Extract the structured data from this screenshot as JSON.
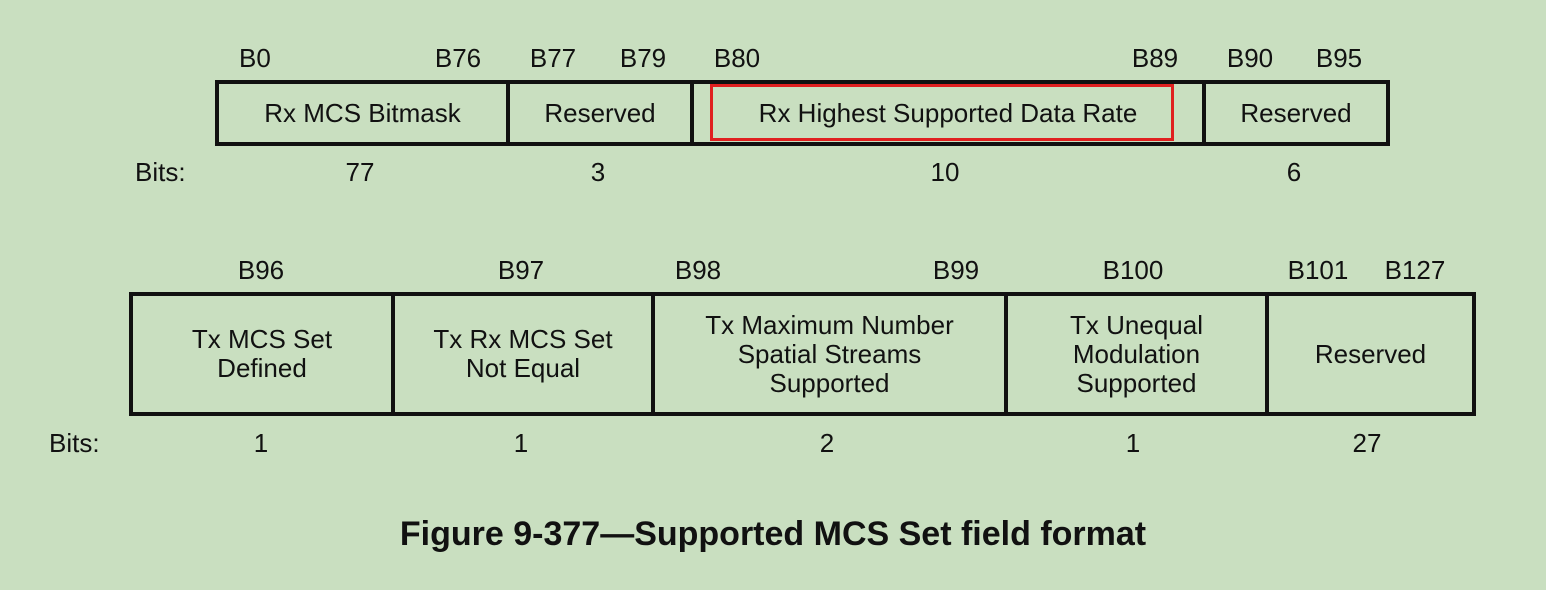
{
  "row1": {
    "bit_markers": [
      "B0",
      "B76",
      "B77",
      "B79",
      "B80",
      "B89",
      "B90",
      "B95"
    ],
    "fields": [
      {
        "name": "Rx MCS Bitmask",
        "bits": "77"
      },
      {
        "name": "Reserved",
        "bits": "3"
      },
      {
        "name": "Rx Highest Supported Data Rate",
        "bits": "10",
        "highlighted": true
      },
      {
        "name": "Reserved",
        "bits": "6"
      }
    ],
    "bits_label": "Bits:"
  },
  "row2": {
    "bit_markers": [
      "B96",
      "B97",
      "B98",
      "B99",
      "B100",
      "B101",
      "B127"
    ],
    "fields": [
      {
        "name": "Tx MCS Set Defined",
        "line1": "Tx MCS Set",
        "line2": "Defined",
        "bits": "1"
      },
      {
        "name": "Tx Rx MCS Set Not Equal",
        "line1": "Tx Rx MCS Set",
        "line2": "Not Equal",
        "bits": "1"
      },
      {
        "name": "Tx Maximum Number Spatial Streams Supported",
        "line1": "Tx Maximum Number",
        "line2": "Spatial Streams",
        "line3": "Supported",
        "bits": "2"
      },
      {
        "name": "Tx Unequal Modulation Supported",
        "line1": "Tx Unequal",
        "line2": "Modulation",
        "line3": "Supported",
        "bits": "1"
      },
      {
        "name": "Reserved",
        "bits": "27"
      }
    ],
    "bits_label": "Bits:"
  },
  "caption": "Figure 9-377—Supported MCS Set field format",
  "colors": {
    "background": "#c9dfc0",
    "highlight": "#e02020",
    "line": "#111111"
  }
}
